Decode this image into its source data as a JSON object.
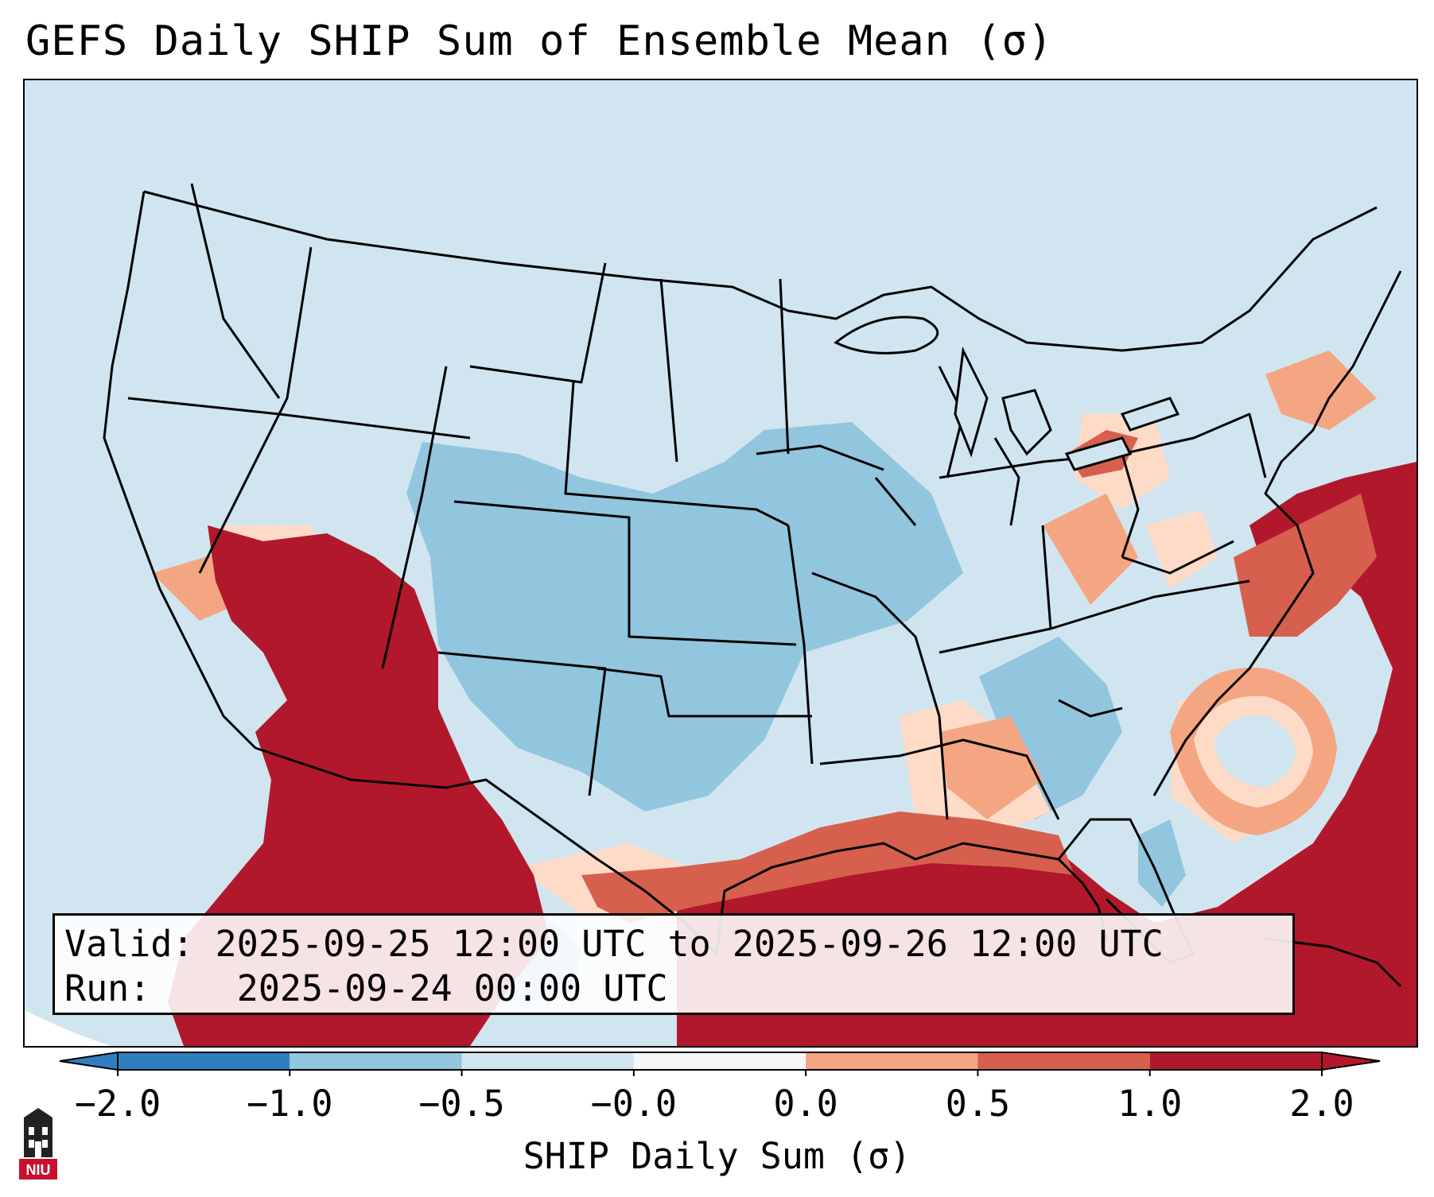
{
  "title": "GEFS Daily SHIP Sum of Ensemble Mean (σ)",
  "info": {
    "valid_label": "Valid:",
    "valid_value": "2025-09-25 12:00 UTC to 2025-09-26 12:00 UTC",
    "run_label": "Run:",
    "run_value": "2025-09-24 00:00 UTC"
  },
  "colorbar": {
    "label": "SHIP Daily Sum (σ)",
    "ticks": [
      "−2.0",
      "−1.0",
      "−0.5",
      "−0.0",
      "0.0",
      "0.5",
      "1.0",
      "2.0"
    ],
    "colors": [
      "#2f7fc0",
      "#92c5de",
      "#d1e5f0",
      "#f7f7f7",
      "#fddbc7",
      "#f4a582",
      "#d6604d",
      "#b2182b"
    ]
  },
  "logo": {
    "text": "NIU",
    "name": "Northern Illinois University"
  },
  "map": {
    "region": "Contiguous United States",
    "background_color": "#d1e5f0"
  }
}
